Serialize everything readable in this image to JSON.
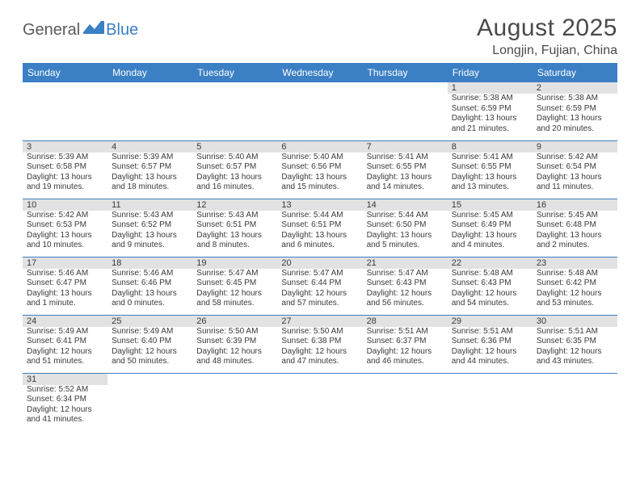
{
  "brand": {
    "part1": "General",
    "part2": "Blue"
  },
  "title": "August 2025",
  "location": "Longjin, Fujian, China",
  "colors": {
    "header_bg": "#3b7fc4",
    "header_text": "#ffffff",
    "daynum_bg": "#e2e2e2",
    "text": "#3a3a3a",
    "rule": "#3b7fc4"
  },
  "weekdays": [
    "Sunday",
    "Monday",
    "Tuesday",
    "Wednesday",
    "Thursday",
    "Friday",
    "Saturday"
  ],
  "weeks": [
    [
      null,
      null,
      null,
      null,
      null,
      {
        "day": "1",
        "sunrise": "Sunrise: 5:38 AM",
        "sunset": "Sunset: 6:59 PM",
        "daylight": "Daylight: 13 hours and 21 minutes."
      },
      {
        "day": "2",
        "sunrise": "Sunrise: 5:38 AM",
        "sunset": "Sunset: 6:59 PM",
        "daylight": "Daylight: 13 hours and 20 minutes."
      }
    ],
    [
      {
        "day": "3",
        "sunrise": "Sunrise: 5:39 AM",
        "sunset": "Sunset: 6:58 PM",
        "daylight": "Daylight: 13 hours and 19 minutes."
      },
      {
        "day": "4",
        "sunrise": "Sunrise: 5:39 AM",
        "sunset": "Sunset: 6:57 PM",
        "daylight": "Daylight: 13 hours and 18 minutes."
      },
      {
        "day": "5",
        "sunrise": "Sunrise: 5:40 AM",
        "sunset": "Sunset: 6:57 PM",
        "daylight": "Daylight: 13 hours and 16 minutes."
      },
      {
        "day": "6",
        "sunrise": "Sunrise: 5:40 AM",
        "sunset": "Sunset: 6:56 PM",
        "daylight": "Daylight: 13 hours and 15 minutes."
      },
      {
        "day": "7",
        "sunrise": "Sunrise: 5:41 AM",
        "sunset": "Sunset: 6:55 PM",
        "daylight": "Daylight: 13 hours and 14 minutes."
      },
      {
        "day": "8",
        "sunrise": "Sunrise: 5:41 AM",
        "sunset": "Sunset: 6:55 PM",
        "daylight": "Daylight: 13 hours and 13 minutes."
      },
      {
        "day": "9",
        "sunrise": "Sunrise: 5:42 AM",
        "sunset": "Sunset: 6:54 PM",
        "daylight": "Daylight: 13 hours and 11 minutes."
      }
    ],
    [
      {
        "day": "10",
        "sunrise": "Sunrise: 5:42 AM",
        "sunset": "Sunset: 6:53 PM",
        "daylight": "Daylight: 13 hours and 10 minutes."
      },
      {
        "day": "11",
        "sunrise": "Sunrise: 5:43 AM",
        "sunset": "Sunset: 6:52 PM",
        "daylight": "Daylight: 13 hours and 9 minutes."
      },
      {
        "day": "12",
        "sunrise": "Sunrise: 5:43 AM",
        "sunset": "Sunset: 6:51 PM",
        "daylight": "Daylight: 13 hours and 8 minutes."
      },
      {
        "day": "13",
        "sunrise": "Sunrise: 5:44 AM",
        "sunset": "Sunset: 6:51 PM",
        "daylight": "Daylight: 13 hours and 6 minutes."
      },
      {
        "day": "14",
        "sunrise": "Sunrise: 5:44 AM",
        "sunset": "Sunset: 6:50 PM",
        "daylight": "Daylight: 13 hours and 5 minutes."
      },
      {
        "day": "15",
        "sunrise": "Sunrise: 5:45 AM",
        "sunset": "Sunset: 6:49 PM",
        "daylight": "Daylight: 13 hours and 4 minutes."
      },
      {
        "day": "16",
        "sunrise": "Sunrise: 5:45 AM",
        "sunset": "Sunset: 6:48 PM",
        "daylight": "Daylight: 13 hours and 2 minutes."
      }
    ],
    [
      {
        "day": "17",
        "sunrise": "Sunrise: 5:46 AM",
        "sunset": "Sunset: 6:47 PM",
        "daylight": "Daylight: 13 hours and 1 minute."
      },
      {
        "day": "18",
        "sunrise": "Sunrise: 5:46 AM",
        "sunset": "Sunset: 6:46 PM",
        "daylight": "Daylight: 13 hours and 0 minutes."
      },
      {
        "day": "19",
        "sunrise": "Sunrise: 5:47 AM",
        "sunset": "Sunset: 6:45 PM",
        "daylight": "Daylight: 12 hours and 58 minutes."
      },
      {
        "day": "20",
        "sunrise": "Sunrise: 5:47 AM",
        "sunset": "Sunset: 6:44 PM",
        "daylight": "Daylight: 12 hours and 57 minutes."
      },
      {
        "day": "21",
        "sunrise": "Sunrise: 5:47 AM",
        "sunset": "Sunset: 6:43 PM",
        "daylight": "Daylight: 12 hours and 56 minutes."
      },
      {
        "day": "22",
        "sunrise": "Sunrise: 5:48 AM",
        "sunset": "Sunset: 6:43 PM",
        "daylight": "Daylight: 12 hours and 54 minutes."
      },
      {
        "day": "23",
        "sunrise": "Sunrise: 5:48 AM",
        "sunset": "Sunset: 6:42 PM",
        "daylight": "Daylight: 12 hours and 53 minutes."
      }
    ],
    [
      {
        "day": "24",
        "sunrise": "Sunrise: 5:49 AM",
        "sunset": "Sunset: 6:41 PM",
        "daylight": "Daylight: 12 hours and 51 minutes."
      },
      {
        "day": "25",
        "sunrise": "Sunrise: 5:49 AM",
        "sunset": "Sunset: 6:40 PM",
        "daylight": "Daylight: 12 hours and 50 minutes."
      },
      {
        "day": "26",
        "sunrise": "Sunrise: 5:50 AM",
        "sunset": "Sunset: 6:39 PM",
        "daylight": "Daylight: 12 hours and 48 minutes."
      },
      {
        "day": "27",
        "sunrise": "Sunrise: 5:50 AM",
        "sunset": "Sunset: 6:38 PM",
        "daylight": "Daylight: 12 hours and 47 minutes."
      },
      {
        "day": "28",
        "sunrise": "Sunrise: 5:51 AM",
        "sunset": "Sunset: 6:37 PM",
        "daylight": "Daylight: 12 hours and 46 minutes."
      },
      {
        "day": "29",
        "sunrise": "Sunrise: 5:51 AM",
        "sunset": "Sunset: 6:36 PM",
        "daylight": "Daylight: 12 hours and 44 minutes."
      },
      {
        "day": "30",
        "sunrise": "Sunrise: 5:51 AM",
        "sunset": "Sunset: 6:35 PM",
        "daylight": "Daylight: 12 hours and 43 minutes."
      }
    ],
    [
      {
        "day": "31",
        "sunrise": "Sunrise: 5:52 AM",
        "sunset": "Sunset: 6:34 PM",
        "daylight": "Daylight: 12 hours and 41 minutes."
      },
      null,
      null,
      null,
      null,
      null,
      null
    ]
  ]
}
